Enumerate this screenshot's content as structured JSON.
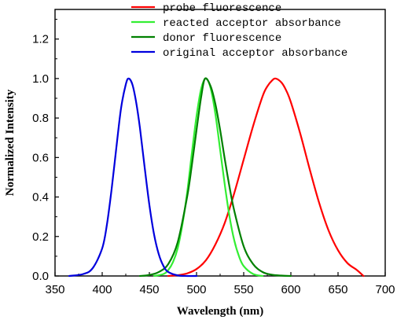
{
  "chart_data": {
    "type": "line",
    "title": "",
    "xlabel": "Wavelength (nm)",
    "ylabel": "Normalized Intensity",
    "xlim": [
      350,
      700
    ],
    "ylim": [
      0,
      1.35
    ],
    "x_ticks": [
      350,
      400,
      450,
      500,
      550,
      600,
      650,
      700
    ],
    "y_ticks": [
      0.0,
      0.2,
      0.4,
      0.6,
      0.8,
      1.0,
      1.2
    ],
    "x_tick_labels": [
      "350",
      "400",
      "450",
      "500",
      "550",
      "600",
      "650",
      "700"
    ],
    "y_tick_labels": [
      "0.0",
      "0.2",
      "0.4",
      "0.6",
      "0.8",
      "1.0",
      "1.2"
    ],
    "grid": false,
    "legend_position": "top-right",
    "series": [
      {
        "name": "probe fluorescence",
        "color": "#ff0000",
        "x": [
          470,
          480,
          490,
          500,
          510,
          520,
          530,
          540,
          550,
          560,
          570,
          575,
          580,
          584,
          590,
          595,
          600,
          610,
          620,
          630,
          640,
          650,
          660,
          670,
          677
        ],
        "y": [
          0.0,
          0.004,
          0.013,
          0.035,
          0.08,
          0.16,
          0.27,
          0.42,
          0.59,
          0.76,
          0.91,
          0.96,
          0.99,
          1.0,
          0.98,
          0.94,
          0.88,
          0.72,
          0.54,
          0.37,
          0.23,
          0.13,
          0.065,
          0.03,
          0.0
        ]
      },
      {
        "name": "reacted acceptor absorbance",
        "color": "#33ee33",
        "x": [
          455,
          465,
          470,
          475,
          480,
          485,
          490,
          495,
          500,
          505,
          510,
          515,
          520,
          525,
          530,
          535,
          540,
          545,
          550,
          560,
          570
        ],
        "y": [
          0.0,
          0.01,
          0.03,
          0.07,
          0.14,
          0.26,
          0.42,
          0.62,
          0.81,
          0.95,
          1.0,
          0.95,
          0.82,
          0.64,
          0.46,
          0.3,
          0.18,
          0.1,
          0.05,
          0.01,
          0.0
        ]
      },
      {
        "name": "donor fluorescence",
        "color": "#008000",
        "x": [
          440,
          450,
          460,
          470,
          480,
          490,
          495,
          500,
          505,
          509,
          515,
          520,
          525,
          530,
          535,
          540,
          550,
          560,
          570,
          580,
          590,
          600
        ],
        "y": [
          0.0,
          0.005,
          0.02,
          0.06,
          0.17,
          0.4,
          0.56,
          0.74,
          0.91,
          1.0,
          0.96,
          0.87,
          0.74,
          0.59,
          0.45,
          0.33,
          0.15,
          0.06,
          0.02,
          0.006,
          0.002,
          0.0
        ]
      },
      {
        "name": "original acceptor absorbance",
        "color": "#0000dd",
        "x": [
          365,
          380,
          390,
          400,
          405,
          410,
          415,
          420,
          425,
          428,
          432,
          436,
          440,
          445,
          450,
          455,
          460,
          465,
          470,
          480,
          490,
          500
        ],
        "y": [
          0.0,
          0.01,
          0.04,
          0.14,
          0.26,
          0.44,
          0.65,
          0.85,
          0.97,
          1.0,
          0.97,
          0.88,
          0.75,
          0.55,
          0.36,
          0.21,
          0.11,
          0.05,
          0.02,
          0.003,
          0.0,
          0.0
        ]
      }
    ]
  }
}
